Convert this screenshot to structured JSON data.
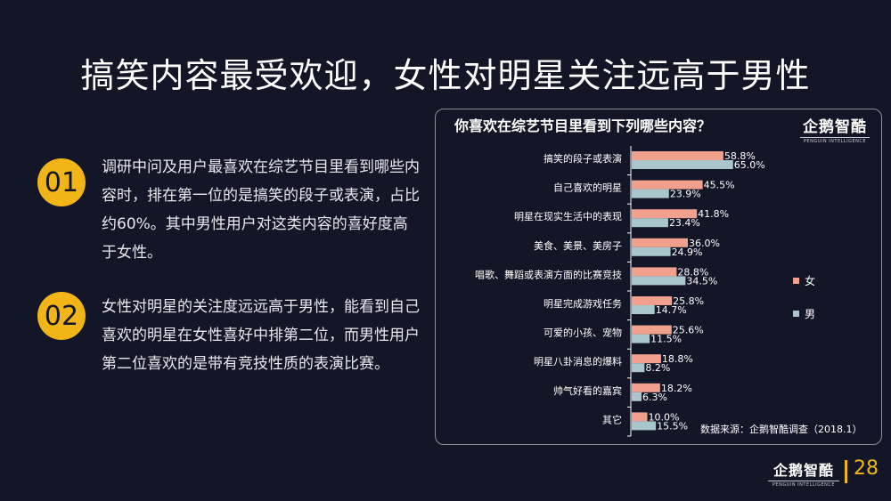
{
  "title": "搞笑内容最受欢迎，女性对明星关注远高于男性",
  "points": [
    {
      "num": "01",
      "text": "调研中问及用户最喜欢在综艺节目里看到哪些内容时，排在第一位的是搞笑的段子或表演，占比约60%。其中男性用户对这类内容的喜好度高于女性。"
    },
    {
      "num": "02",
      "text": "女性对明星的关注度远远高于男性，能看到自己喜欢的明星在女性喜好中排第二位，而男性用户第二位喜欢的是带有竞技性质的表演比赛。"
    }
  ],
  "logo": {
    "name": "企鹅智酷",
    "sub": "PENGUIN INTELLIGENCE"
  },
  "page_number": "28",
  "source": "数据来源：企鹅智酷调查（2018.1）",
  "colors": {
    "female": "#f0a08c",
    "male": "#a9c6cc",
    "accent": "#f2b517"
  },
  "chart_data": {
    "type": "bar",
    "orientation": "horizontal",
    "title": "你喜欢在综艺节目里看到下列哪些内容？",
    "categories": [
      "搞笑的段子或表演",
      "自己喜欢的明星",
      "明星在现实生活中的表现",
      "美食、美景、美房子",
      "唱歌、舞蹈或表演方面的比赛竞技",
      "明星完成游戏任务",
      "可爱的小孩、宠物",
      "明星八卦消息的爆料",
      "帅气好看的嘉宾",
      "其它"
    ],
    "series": [
      {
        "name": "女",
        "values": [
          58.8,
          45.5,
          41.8,
          36.0,
          28.8,
          25.8,
          25.6,
          18.8,
          18.2,
          10.0
        ]
      },
      {
        "name": "男",
        "values": [
          65.0,
          23.9,
          23.4,
          24.9,
          34.5,
          14.7,
          11.5,
          8.2,
          6.3,
          15.5
        ]
      }
    ],
    "value_suffix": "%",
    "xlim": [
      0,
      100
    ],
    "legend": "right",
    "grid": false
  }
}
